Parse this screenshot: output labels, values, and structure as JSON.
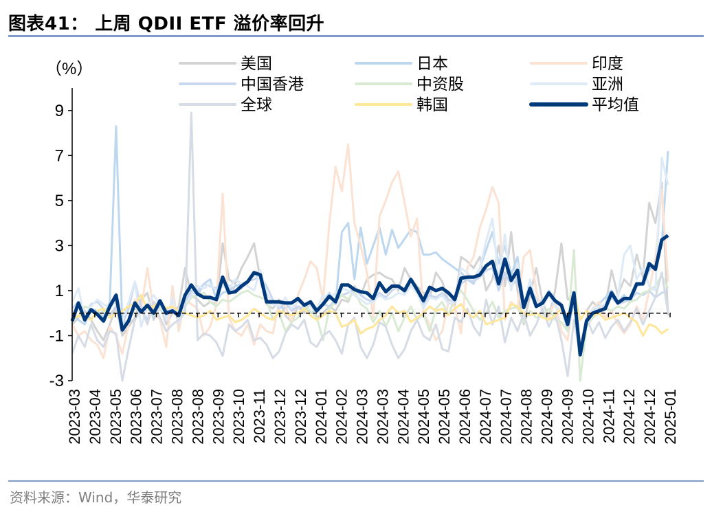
{
  "header": {
    "title": "图表41：  上周 QDII ETF 溢价率回升"
  },
  "footer": {
    "source": "资料来源：Wind，华泰研究"
  },
  "chart_data": {
    "type": "line",
    "title": "图表41：  上周 QDII ETF 溢价率回升",
    "ylabel": "（%）",
    "xlabel": "",
    "ylim": [
      -3,
      10
    ],
    "yticks": [
      -3,
      -1,
      1,
      3,
      5,
      7,
      9
    ],
    "xticks": [
      "2023-03",
      "2023-04",
      "2023-05",
      "2023-06",
      "2023-07",
      "2023-08",
      "2023-08",
      "2023-09",
      "2023-10",
      "2023-11",
      "2023-12",
      "2023-12",
      "2024-01",
      "2024-02",
      "2024-03",
      "2024-03",
      "2024-04",
      "2024-05",
      "2024-05",
      "2024-06",
      "2024-07",
      "2024-07",
      "2024-08",
      "2024-09",
      "2024-09",
      "2024-10",
      "2024-11",
      "2024-12",
      "2024-12",
      "2025-01"
    ],
    "zero_line": "dashed",
    "grid": false,
    "legend_placement": "top",
    "series": [
      {
        "name": "美国",
        "color": "#d3d3d3",
        "width": "thin",
        "values": [
          -0.5,
          -0.2,
          0.1,
          -0.3,
          -0.8,
          -1.2,
          -0.5,
          0.3,
          -1.0,
          -0.6,
          -0.2,
          0.6,
          0.9,
          -0.3,
          0.4,
          -0.5,
          0.0,
          0.3,
          2.0,
          0.8,
          0.6,
          0.3,
          0.5,
          0.4,
          3.1,
          1.5,
          1.3,
          2.0,
          2.5,
          3.1,
          1.5,
          0.4,
          0.2,
          0.6,
          -0.1,
          -0.4,
          0.3,
          0.0,
          0.5,
          -0.2,
          0.0,
          0.3,
          0.1,
          0.6,
          0.5,
          1.2,
          0.8,
          1.5,
          1.7,
          1.8,
          1.6,
          1.5,
          1.0,
          2.0,
          1.5,
          1.2,
          0.9,
          0.7,
          1.8,
          1.4,
          0.5,
          0.3,
          2.5,
          2.3,
          2.0,
          2.5,
          1.0,
          1.5,
          3.0,
          1.2,
          3.6,
          1.0,
          -0.5,
          0.8,
          2.0,
          0.5,
          -0.2,
          1.0,
          3.1,
          0.6,
          0.8,
          -0.3,
          0.1,
          0.5,
          0.2,
          0.3,
          1.9,
          0.8,
          1.5,
          1.2,
          2.6,
          1.6,
          4.9,
          4.0,
          5.8,
          -0.1
        ]
      },
      {
        "name": "日本",
        "color": "#bdd7ee",
        "width": "thin",
        "values": [
          0.0,
          -0.3,
          -0.5,
          0.2,
          0.1,
          -0.2,
          0.5,
          8.3,
          -0.5,
          -0.3,
          0.5,
          0.2,
          0.3,
          -0.2,
          0.4,
          0.1,
          0.3,
          0.0,
          0.5,
          1.0,
          0.8,
          1.3,
          1.5,
          0.6,
          0.9,
          1.0,
          1.2,
          1.3,
          1.4,
          1.7,
          1.6,
          0.5,
          0.4,
          0.3,
          0.2,
          0.5,
          0.6,
          0.4,
          0.3,
          0.1,
          0.5,
          0.9,
          0.4,
          3.6,
          4.0,
          1.5,
          3.8,
          2.2,
          3.0,
          3.8,
          2.6,
          3.7,
          2.9,
          3.3,
          3.7,
          3.6,
          2.6,
          2.6,
          2.7,
          2.4,
          2.2,
          2.0,
          1.8,
          1.5,
          1.3,
          2.0,
          2.8,
          3.6,
          2.2,
          3.0,
          1.7,
          2.5,
          0.4,
          1.3,
          0.6,
          0.5,
          1.0,
          0.6,
          0.3,
          -0.8,
          0.8,
          -1.5,
          -0.6,
          0.0,
          0.4,
          0.7,
          1.0,
          0.5,
          0.8,
          0.5,
          1.2,
          1.3,
          1.9,
          2.2,
          3.0,
          7.2
        ]
      },
      {
        "name": "印度",
        "color": "#fbe2d3",
        "width": "thin",
        "values": [
          -0.5,
          -1.0,
          -0.8,
          -1.2,
          -1.4,
          -2.0,
          -0.6,
          -1.0,
          -1.8,
          -0.5,
          0.6,
          0.2,
          2.0,
          0.1,
          -0.3,
          -1.5,
          1.2,
          -0.8,
          0.6,
          0.4,
          0.2,
          -1.0,
          -0.6,
          0.4,
          5.3,
          -0.2,
          -0.8,
          -1.0,
          -0.5,
          -1.4,
          -0.5,
          -0.8,
          -0.9,
          0.5,
          0.3,
          -0.4,
          0.8,
          1.5,
          2.3,
          2.0,
          0.6,
          4.0,
          6.5,
          5.4,
          7.5,
          4.0,
          3.0,
          1.8,
          -0.2,
          4.3,
          5.0,
          5.8,
          6.3,
          4.9,
          3.4,
          4.2,
          0.0,
          -0.5,
          -1.2,
          -0.8,
          0.5,
          0.3,
          -0.9,
          2.0,
          2.5,
          3.8,
          4.6,
          5.6,
          4.9,
          -0.3,
          0.5,
          0.2,
          2.5,
          2.8,
          1.0,
          0.0,
          -0.2,
          0.6,
          -0.8,
          -1.2,
          0.9,
          -1.5,
          -0.3,
          0.2,
          0.5,
          -0.2,
          0.1,
          -0.5,
          -0.9,
          -0.5,
          0.3,
          -0.3,
          1.0,
          2.4,
          5.5,
          1.4
        ]
      },
      {
        "name": "中国香港",
        "color": "#c9d8ef",
        "width": "thin",
        "values": [
          0.2,
          0.5,
          -0.3,
          0.4,
          0.5,
          0.2,
          -0.1,
          0.3,
          -0.5,
          0.2,
          1.4,
          0.2,
          -0.3,
          0.5,
          0.2,
          -0.2,
          0.6,
          -0.4,
          0.5,
          0.9,
          1.0,
          1.3,
          1.2,
          1.1,
          1.4,
          1.2,
          1.0,
          1.1,
          1.4,
          1.5,
          1.6,
          1.2,
          0.6,
          0.2,
          0.5,
          0.1,
          0.3,
          0.2,
          0.0,
          0.1,
          0.4,
          0.3,
          0.6,
          0.8,
          0.9,
          1.1,
          0.8,
          0.6,
          0.5,
          0.9,
          0.7,
          1.0,
          1.2,
          0.9,
          1.5,
          1.0,
          0.4,
          0.8,
          0.7,
          0.9,
          0.6,
          0.5,
          1.3,
          1.5,
          1.4,
          1.6,
          1.9,
          2.0,
          1.0,
          1.8,
          1.2,
          1.5,
          0.2,
          0.9,
          0.3,
          0.4,
          0.8,
          0.5,
          0.3,
          -0.8,
          0.5,
          -1.8,
          -0.5,
          -0.1,
          0.1,
          0.3,
          0.7,
          0.4,
          0.5,
          0.6,
          0.9,
          0.8,
          1.0,
          0.7,
          0.9,
          1.0
        ]
      },
      {
        "name": "中资股",
        "color": "#d9ead3",
        "width": "thin",
        "values": [
          0.0,
          -0.2,
          0.3,
          0.2,
          -0.1,
          0.1,
          0.3,
          0.5,
          -0.6,
          -0.3,
          0.2,
          0.0,
          0.3,
          -0.1,
          0.2,
          0.0,
          0.1,
          -0.2,
          0.3,
          0.7,
          0.8,
          0.9,
          0.5,
          0.3,
          0.6,
          0.5,
          0.7,
          0.9,
          1.0,
          0.8,
          0.7,
          0.6,
          -0.3,
          0.0,
          -0.8,
          -0.4,
          -0.2,
          0.3,
          0.1,
          -0.2,
          -1.2,
          0.2,
          0.5,
          0.8,
          0.6,
          1.0,
          0.4,
          0.2,
          -0.4,
          0.1,
          -0.6,
          0.0,
          -0.8,
          -0.2,
          0.3,
          -0.3,
          0.0,
          -0.8,
          0.2,
          0.5,
          -0.1,
          0.7,
          1.0,
          0.6,
          0.1,
          -0.3,
          0.0,
          0.5,
          -0.2,
          0.1,
          0.2,
          0.3,
          -0.4,
          0.1,
          -0.2,
          -0.1,
          0.2,
          -0.3,
          -0.4,
          -0.8,
          2.8,
          -3.0,
          -0.6,
          -0.2,
          0.0,
          0.2,
          0.1,
          0.3,
          0.2,
          0.5,
          0.6,
          0.9,
          1.0,
          1.2,
          1.7,
          1.1
        ]
      },
      {
        "name": "亚洲",
        "color": "#deebf7",
        "width": "thin",
        "values": [
          0.5,
          1.1,
          -0.2,
          0.3,
          0.6,
          0.4,
          0.2,
          0.6,
          -0.4,
          0.5,
          1.4,
          -0.6,
          0.3,
          0.8,
          0.4,
          -0.3,
          0.7,
          -0.5,
          0.4,
          0.8,
          1.2,
          1.1,
          1.3,
          1.0,
          1.2,
          1.1,
          1.5,
          1.3,
          1.2,
          1.0,
          1.9,
          0.9,
          0.4,
          0.3,
          0.7,
          0.2,
          0.5,
          0.4,
          0.3,
          0.2,
          0.8,
          0.6,
          0.9,
          1.1,
          1.0,
          0.8,
          0.6,
          0.4,
          0.5,
          0.8,
          0.6,
          0.7,
          0.9,
          0.8,
          1.2,
          0.9,
          0.2,
          0.7,
          0.6,
          0.8,
          0.4,
          0.5,
          2.0,
          1.8,
          1.5,
          2.0,
          3.2,
          4.2,
          1.5,
          3.5,
          1.0,
          2.2,
          0.3,
          1.5,
          0.5,
          0.2,
          0.9,
          0.3,
          0.1,
          -0.5,
          0.6,
          -1.7,
          -0.4,
          0.2,
          0.3,
          0.4,
          0.8,
          0.7,
          2.6,
          3.0,
          1.5,
          2.0,
          1.2,
          1.0,
          6.9,
          5.7
        ]
      },
      {
        "name": "全球",
        "color": "#d6dce5",
        "width": "thin",
        "values": [
          -1.8,
          -1.0,
          -1.5,
          -0.5,
          -1.2,
          -1.5,
          -0.8,
          -0.9,
          -3.0,
          -1.6,
          -0.3,
          0.2,
          -0.5,
          0.5,
          -0.2,
          -0.8,
          -0.5,
          -0.3,
          0.0,
          8.9,
          -1.2,
          -0.9,
          -1.0,
          -1.3,
          -1.9,
          -0.5,
          -0.8,
          -0.6,
          -0.3,
          -1.2,
          -1.1,
          -1.4,
          -2.0,
          -1.7,
          -0.9,
          -0.5,
          -0.7,
          -0.3,
          -1.3,
          -1.5,
          -1.0,
          -0.8,
          -1.2,
          -1.8,
          -0.5,
          -0.2,
          -1.5,
          -2.0,
          -1.4,
          -0.4,
          -0.6,
          -1.4,
          -2.0,
          -1.6,
          -0.8,
          -0.3,
          -1.0,
          -1.2,
          -0.5,
          -1.6,
          -1.7,
          -0.2,
          -0.4,
          0.2,
          -0.6,
          -1.0,
          0.6,
          -0.5,
          0.3,
          -1.3,
          -0.2,
          -0.8,
          0.0,
          -1.0,
          -0.5,
          0.2,
          -0.6,
          0.0,
          -1.2,
          -2.8,
          -0.3,
          -1.8,
          -0.2,
          -0.9,
          -0.4,
          -1.1,
          -0.6,
          -0.3,
          -0.8,
          -0.4,
          0.2,
          -0.5,
          0.1,
          0.7,
          1.8,
          0.0
        ]
      },
      {
        "name": "韩国",
        "color": "#ffe699",
        "width": "thin",
        "values": [
          -0.3,
          -0.1,
          -0.2,
          -0.3,
          0.1,
          0.2,
          -0.2,
          0.0,
          0.1,
          0.3,
          0.4,
          0.8,
          0.2,
          0.3,
          0.5,
          0.2,
          0.3,
          0.1,
          0.0,
          -0.1,
          -0.2,
          -0.1,
          0.1,
          -0.3,
          -0.2,
          -0.1,
          -0.4,
          -0.3,
          -0.1,
          0.2,
          0.0,
          -0.2,
          -0.3,
          0.1,
          0.0,
          -0.1,
          0.0,
          0.2,
          -0.1,
          -0.3,
          -0.1,
          0.1,
          0.0,
          -0.6,
          -0.5,
          -0.3,
          -0.9,
          -0.7,
          -0.6,
          -0.3,
          -0.1,
          0.3,
          0.0,
          0.1,
          -0.4,
          -0.2,
          0.0,
          0.3,
          0.1,
          0.2,
          -0.1,
          0.2,
          0.4,
          0.0,
          -0.2,
          0.1,
          -0.5,
          -0.4,
          -0.3,
          -0.2,
          0.4,
          0.3,
          0.0,
          -0.1,
          0.0,
          -0.2,
          -0.3,
          -0.1,
          0.2,
          -0.2,
          0.9,
          -0.3,
          0.1,
          -0.1,
          0.0,
          -0.3,
          -0.2,
          -0.1,
          0.0,
          -0.2,
          -0.4,
          -1.0,
          -0.5,
          -0.6,
          -0.9,
          -0.7
        ]
      },
      {
        "name": "平均值",
        "color": "#003a7c",
        "width": "thick",
        "values": [
          -0.35,
          0.45,
          -0.3,
          0.15,
          -0.05,
          -0.35,
          0.3,
          0.8,
          -0.75,
          -0.35,
          0.45,
          0.05,
          0.35,
          0,
          0.55,
          0,
          0.1,
          -0.1,
          0.8,
          1.25,
          0.85,
          0.7,
          0.7,
          0.6,
          1.6,
          0.9,
          0.95,
          1.2,
          1.4,
          1.8,
          1.7,
          0.5,
          0.5,
          0.5,
          0.45,
          0.45,
          0.65,
          0.35,
          0.5,
          0.1,
          0.4,
          0.75,
          0.5,
          1.25,
          1.25,
          1.05,
          0.95,
          0.9,
          0.65,
          1.35,
          0.95,
          1.2,
          1.2,
          1.0,
          1.5,
          1.05,
          0.55,
          1.15,
          1.0,
          1.1,
          0.9,
          0.6,
          1.55,
          1.6,
          1.6,
          1.7,
          2.1,
          2.3,
          1.3,
          2.4,
          1.45,
          1.9,
          0.25,
          1.1,
          0.3,
          0.45,
          0.9,
          0.55,
          0.35,
          -0.5,
          0.9,
          -1.85,
          -0.35,
          0,
          0.1,
          0.2,
          0.9,
          0.45,
          0.65,
          0.65,
          1.3,
          1.3,
          2.2,
          1.95,
          3.25,
          3.45
        ]
      }
    ]
  }
}
